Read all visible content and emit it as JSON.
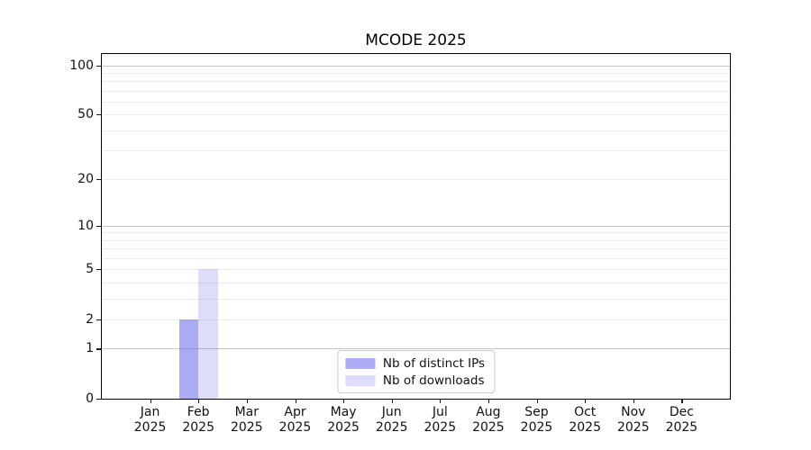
{
  "chart_data": {
    "type": "bar",
    "title": "MCODE 2025",
    "categories": [
      "Jan 2025",
      "Feb 2025",
      "Mar 2025",
      "Apr 2025",
      "May 2025",
      "Jun 2025",
      "Jul 2025",
      "Aug 2025",
      "Sep 2025",
      "Oct 2025",
      "Nov 2025",
      "Dec 2025"
    ],
    "series": [
      {
        "name": "Nb of distinct IPs",
        "color": "rgba(85,85,235,0.5)",
        "color_on_white": "#aaaaf5",
        "values": [
          0,
          2,
          0,
          0,
          0,
          0,
          0,
          0,
          0,
          0,
          0,
          0
        ]
      },
      {
        "name": "Nb of downloads",
        "color": "rgba(85,85,235,0.2)",
        "color_on_white": "#dcdcf9",
        "values": [
          0,
          5,
          0,
          0,
          0,
          0,
          0,
          0,
          0,
          0,
          0,
          0
        ]
      }
    ],
    "xlabel": "",
    "ylabel": "",
    "y_scale": "log1p",
    "ylim": [
      0,
      117
    ],
    "y_ticks": [
      0,
      1,
      2,
      5,
      10,
      20,
      50,
      100
    ],
    "y_decade_ticks": [
      1,
      10,
      100
    ],
    "y_minor_ticks": [
      3,
      4,
      6,
      7,
      8,
      9,
      30,
      40,
      60,
      70,
      80,
      90
    ],
    "grid": "on",
    "legend_position": "lower center"
  },
  "colors": {
    "major_grid": "#c4c4c4",
    "minor_grid": "#ededed",
    "axis": "#000000",
    "text": "#111111",
    "legend_border": "#cccccc"
  }
}
